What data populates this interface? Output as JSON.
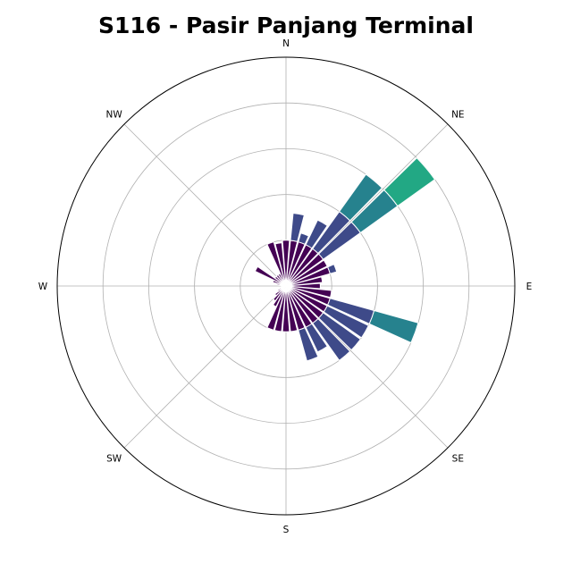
{
  "chart_data": {
    "type": "windrose",
    "title": "S116 - Pasir Panjang Terminal",
    "directions": [
      "N",
      "NE",
      "E",
      "SE",
      "S",
      "SW",
      "W",
      "NW"
    ],
    "sector_count": 36,
    "sector_width_deg": 10,
    "max_radius": 5,
    "grid_radii": [
      1,
      2,
      3,
      4,
      5
    ],
    "radial_tick_labels": false,
    "colormap": [
      "#440154",
      "#3e4a89",
      "#26828e",
      "#22a884",
      "#7ad151"
    ],
    "bands": [
      1,
      2,
      3,
      4,
      5
    ],
    "sectors": [
      {
        "angle": 0,
        "value": 1.0
      },
      {
        "angle": 10,
        "value": 1.6
      },
      {
        "angle": 20,
        "value": 1.2
      },
      {
        "angle": 30,
        "value": 1.6
      },
      {
        "angle": 40,
        "value": 3.0
      },
      {
        "angle": 50,
        "value": 4.0
      },
      {
        "angle": 60,
        "value": 1.0
      },
      {
        "angle": 70,
        "value": 1.15
      },
      {
        "angle": 80,
        "value": 0.8
      },
      {
        "angle": 90,
        "value": 0.75
      },
      {
        "angle": 100,
        "value": 1.0
      },
      {
        "angle": 110,
        "value": 3.0
      },
      {
        "angle": 120,
        "value": 2.0
      },
      {
        "angle": 130,
        "value": 2.0
      },
      {
        "angle": 140,
        "value": 2.0
      },
      {
        "angle": 150,
        "value": 1.6
      },
      {
        "angle": 160,
        "value": 1.7
      },
      {
        "angle": 170,
        "value": 1.0
      },
      {
        "angle": 180,
        "value": 1.0
      },
      {
        "angle": 190,
        "value": 1.0
      },
      {
        "angle": 200,
        "value": 1.0
      },
      {
        "angle": 210,
        "value": 0.5
      },
      {
        "angle": 220,
        "value": 0.4
      },
      {
        "angle": 230,
        "value": 0.3
      },
      {
        "angle": 240,
        "value": 0.2
      },
      {
        "angle": 250,
        "value": 0.15
      },
      {
        "angle": 260,
        "value": 0.1
      },
      {
        "angle": 270,
        "value": 0.1
      },
      {
        "angle": 280,
        "value": 0.2
      },
      {
        "angle": 290,
        "value": 0.3
      },
      {
        "angle": 300,
        "value": 0.75
      },
      {
        "angle": 310,
        "value": 0.3
      },
      {
        "angle": 320,
        "value": 0.3
      },
      {
        "angle": 330,
        "value": 0.3
      },
      {
        "angle": 340,
        "value": 1.0
      },
      {
        "angle": 350,
        "value": 0.95
      }
    ]
  }
}
